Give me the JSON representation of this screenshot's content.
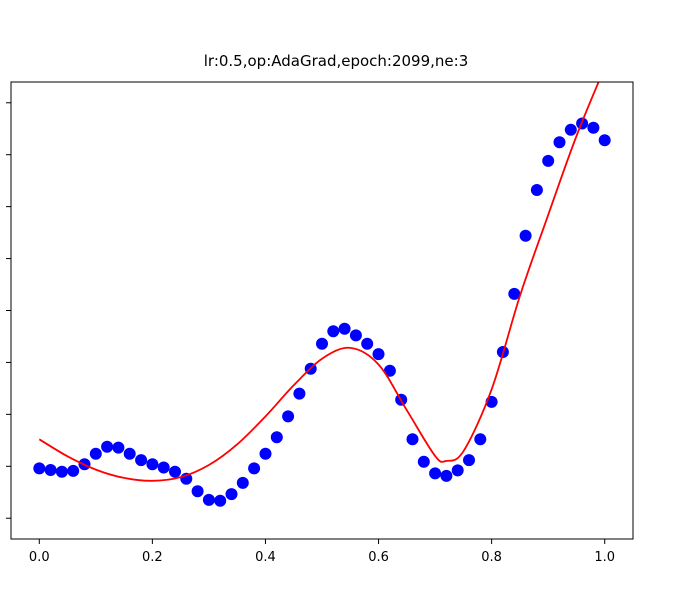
{
  "chart_data": {
    "type": "scatter",
    "title": "lr:0.5,op:AdaGrad,epoch:2099,ne:3",
    "xlabel": "",
    "ylabel": "",
    "xlim": [
      -0.05,
      1.05
    ],
    "ylim": [
      -0.05,
      1.05
    ],
    "x_ticks": [
      0.0,
      0.2,
      0.4,
      0.6,
      0.8,
      1.0
    ],
    "x_tick_labels": [
      "0.0",
      "0.2",
      "0.4",
      "0.6",
      "0.8",
      "1.0"
    ],
    "y_ticks": [
      0.0,
      0.125,
      0.25,
      0.375,
      0.5,
      0.625,
      0.75,
      0.875,
      1.0
    ],
    "y_tick_labels": [],
    "grid": false,
    "colors": {
      "points": "#0000ff",
      "fit_line": "#ff0000"
    },
    "series": [
      {
        "kind": "scatter",
        "color": "#0000ff",
        "points": [
          [
            0.0,
            0.12
          ],
          [
            0.02,
            0.116
          ],
          [
            0.04,
            0.112
          ],
          [
            0.06,
            0.114
          ],
          [
            0.08,
            0.13
          ],
          [
            0.1,
            0.155
          ],
          [
            0.12,
            0.172
          ],
          [
            0.14,
            0.17
          ],
          [
            0.16,
            0.155
          ],
          [
            0.18,
            0.14
          ],
          [
            0.2,
            0.13
          ],
          [
            0.22,
            0.122
          ],
          [
            0.24,
            0.112
          ],
          [
            0.26,
            0.095
          ],
          [
            0.28,
            0.065
          ],
          [
            0.3,
            0.044
          ],
          [
            0.32,
            0.042
          ],
          [
            0.34,
            0.058
          ],
          [
            0.36,
            0.085
          ],
          [
            0.38,
            0.12
          ],
          [
            0.4,
            0.155
          ],
          [
            0.42,
            0.195
          ],
          [
            0.44,
            0.245
          ],
          [
            0.46,
            0.3
          ],
          [
            0.48,
            0.36
          ],
          [
            0.5,
            0.42
          ],
          [
            0.52,
            0.45
          ],
          [
            0.54,
            0.456
          ],
          [
            0.56,
            0.44
          ],
          [
            0.58,
            0.42
          ],
          [
            0.6,
            0.395
          ],
          [
            0.62,
            0.355
          ],
          [
            0.64,
            0.285
          ],
          [
            0.66,
            0.19
          ],
          [
            0.68,
            0.136
          ],
          [
            0.7,
            0.108
          ],
          [
            0.72,
            0.102
          ],
          [
            0.74,
            0.115
          ],
          [
            0.76,
            0.14
          ],
          [
            0.78,
            0.19
          ],
          [
            0.8,
            0.28
          ],
          [
            0.82,
            0.4
          ],
          [
            0.84,
            0.54
          ],
          [
            0.86,
            0.68
          ],
          [
            0.88,
            0.79
          ],
          [
            0.9,
            0.86
          ],
          [
            0.92,
            0.905
          ],
          [
            0.94,
            0.935
          ],
          [
            0.96,
            0.95
          ],
          [
            0.98,
            0.94
          ],
          [
            1.0,
            0.91
          ]
        ]
      },
      {
        "kind": "line",
        "color": "#ff0000",
        "points": [
          [
            0.0,
            0.19
          ],
          [
            0.05,
            0.149
          ],
          [
            0.1,
            0.117
          ],
          [
            0.15,
            0.097
          ],
          [
            0.2,
            0.09
          ],
          [
            0.25,
            0.099
          ],
          [
            0.3,
            0.128
          ],
          [
            0.35,
            0.178
          ],
          [
            0.4,
            0.245
          ],
          [
            0.45,
            0.32
          ],
          [
            0.5,
            0.384
          ],
          [
            0.55,
            0.41
          ],
          [
            0.6,
            0.37
          ],
          [
            0.65,
            0.26
          ],
          [
            0.7,
            0.15
          ],
          [
            0.72,
            0.138
          ],
          [
            0.75,
            0.161
          ],
          [
            0.8,
            0.31
          ],
          [
            0.85,
            0.535
          ],
          [
            0.9,
            0.73
          ],
          [
            0.95,
            0.92
          ],
          [
            1.0,
            1.085
          ]
        ]
      }
    ]
  }
}
